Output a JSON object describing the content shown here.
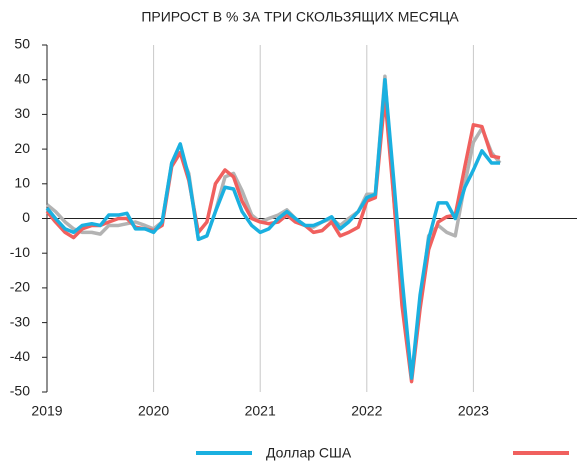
{
  "chart_data": {
    "type": "line",
    "title": "ПРИРОСТ В % ЗА ТРИ СКОЛЬЗЯЩИХ МЕСЯЦА",
    "x": [
      2019.0,
      2019.08,
      2019.17,
      2019.25,
      2019.33,
      2019.42,
      2019.5,
      2019.58,
      2019.67,
      2019.75,
      2019.83,
      2019.92,
      2020.0,
      2020.08,
      2020.17,
      2020.25,
      2020.33,
      2020.42,
      2020.5,
      2020.58,
      2020.67,
      2020.75,
      2020.83,
      2020.92,
      2021.0,
      2021.08,
      2021.17,
      2021.25,
      2021.33,
      2021.42,
      2021.5,
      2021.58,
      2021.67,
      2021.75,
      2021.83,
      2021.92,
      2022.0,
      2022.08,
      2022.17,
      2022.25,
      2022.33,
      2022.42,
      2022.5,
      2022.58,
      2022.67,
      2022.75,
      2022.83,
      2022.92,
      2023.0,
      2023.08,
      2023.17,
      2023.25
    ],
    "series": [
      {
        "name": "Доллар США",
        "color": "#1ab0e0",
        "values": [
          3,
          0,
          -3,
          -4,
          -2,
          -1.5,
          -2,
          1,
          1,
          1.5,
          -3,
          -3,
          -4,
          -1,
          16,
          21.5,
          12,
          -6,
          -5,
          2,
          9,
          8.5,
          2,
          -2,
          -4,
          -3,
          0,
          2,
          0,
          -2,
          -2,
          -1,
          0.5,
          -3,
          -1,
          2,
          6,
          7,
          40,
          12,
          -17,
          -46,
          -22,
          -6,
          4.5,
          4.5,
          0,
          9,
          14,
          19.5,
          16,
          16
        ]
      },
      {
        "color": "#f0605e",
        "values": [
          2,
          -1,
          -4,
          -5.5,
          -3,
          -2,
          -2,
          -1,
          0,
          0,
          -2.5,
          -3,
          -3.5,
          -2,
          15,
          19,
          11,
          -4,
          -1,
          10,
          14,
          12,
          5,
          0,
          -1,
          -1.5,
          -1,
          1,
          -1,
          -2,
          -4,
          -3.5,
          -1,
          -5,
          -4,
          -2.5,
          5,
          6,
          35,
          7,
          -25,
          -47,
          -26,
          -9,
          -1,
          0.5,
          1,
          15,
          27,
          26.5,
          18,
          17.5
        ]
      },
      {
        "color": "#b3b3b3",
        "values": [
          4,
          2,
          -1,
          -3,
          -4,
          -4,
          -4.5,
          -2,
          -2,
          -1.5,
          -1,
          -2,
          -3,
          -1,
          16,
          19,
          13,
          -6,
          -5,
          2,
          12,
          13,
          8,
          1,
          -1,
          0,
          1,
          2.5,
          0,
          -2,
          -2.5,
          -1,
          0,
          -2,
          0,
          2,
          7,
          7,
          41,
          7,
          -22,
          -46,
          -25,
          -5,
          -2,
          -4,
          -5,
          10,
          22,
          26,
          19,
          16
        ]
      }
    ],
    "xlim": [
      2019,
      2024
    ],
    "xticks": [
      2019,
      2020,
      2021,
      2022,
      2023
    ],
    "ylim": [
      -50,
      50
    ],
    "yticks": [
      -50,
      -40,
      -30,
      -20,
      -10,
      0,
      10,
      20,
      30,
      40,
      50
    ],
    "grid": true
  }
}
